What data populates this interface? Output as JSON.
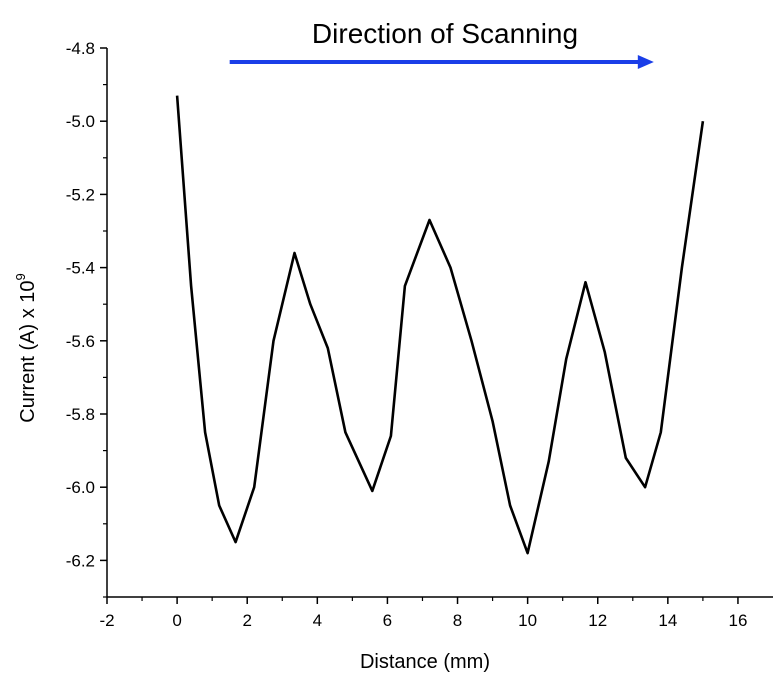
{
  "chart_data": {
    "type": "line",
    "title": "",
    "xlabel": "Distance (mm)",
    "ylabel_base": "Current (A) x 10",
    "ylabel_exp": "9",
    "xlim": [
      -2,
      17
    ],
    "ylim": [
      -6.3,
      -4.8
    ],
    "x_ticks": [
      -2,
      0,
      2,
      4,
      6,
      8,
      10,
      12,
      14,
      16
    ],
    "x_tick_labels": [
      "-2",
      "0",
      "2",
      "4",
      "6",
      "8",
      "10",
      "12",
      "14",
      "16"
    ],
    "y_ticks": [
      -4.8,
      -5.0,
      -5.2,
      -5.4,
      -5.6,
      -5.8,
      -6.0,
      -6.2
    ],
    "y_tick_labels": [
      "-4.8",
      "-5.0",
      "-5.2",
      "-5.4",
      "-5.6",
      "-5.8",
      "-6.0",
      "-6.2"
    ],
    "grid": false,
    "line_color": "#000000",
    "series": [
      {
        "x": [
          0.0,
          0.4,
          0.8,
          1.2,
          1.67,
          2.2,
          2.75,
          3.35,
          3.8,
          4.3,
          4.8,
          5.57,
          6.1,
          6.5,
          7.2,
          7.8,
          8.4,
          9.0,
          9.5,
          10.0,
          10.6,
          11.1,
          11.65,
          12.2,
          12.8,
          13.35,
          13.8,
          14.4,
          15.0
        ],
        "y": [
          -4.93,
          -5.45,
          -5.85,
          -6.05,
          -6.15,
          -6.0,
          -5.6,
          -5.36,
          -5.5,
          -5.62,
          -5.85,
          -6.01,
          -5.86,
          -5.45,
          -5.27,
          -5.4,
          -5.6,
          -5.82,
          -6.05,
          -6.18,
          -5.93,
          -5.65,
          -5.44,
          -5.63,
          -5.92,
          -6.0,
          -5.85,
          -5.4,
          -5.0
        ]
      }
    ]
  },
  "annotation": {
    "text": "Direction of Scanning",
    "arrow_color": "#1a3ee8",
    "arrow_x_start": 1.5,
    "arrow_x_end": 13.6
  }
}
